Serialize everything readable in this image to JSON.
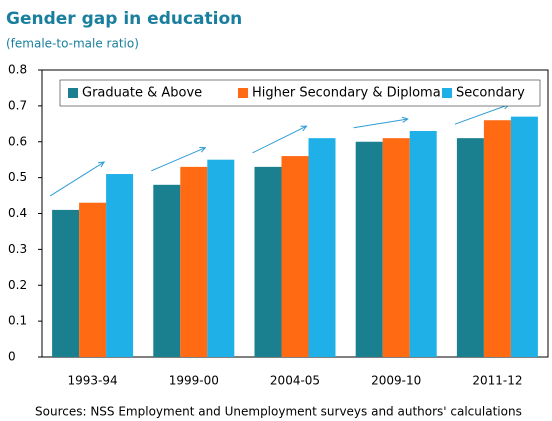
{
  "chart_data": {
    "type": "bar",
    "title": "Gender gap in education",
    "subtitle": "(female-to-male ratio)",
    "source": "Sources: NSS Employment and Unemployment surveys and authors' calculations",
    "categories": [
      "1993-94",
      "1999-00",
      "2004-05",
      "2009-10",
      "2011-12"
    ],
    "series": [
      {
        "name": "Graduate & Above",
        "color": "#1a7f8e",
        "values": [
          0.41,
          0.48,
          0.53,
          0.6,
          0.61
        ]
      },
      {
        "name": "Higher Secondary & Diploma",
        "color": "#ff6a13",
        "values": [
          0.43,
          0.53,
          0.56,
          0.61,
          0.66
        ]
      },
      {
        "name": "Secondary",
        "color": "#1fb0e8",
        "values": [
          0.51,
          0.55,
          0.61,
          0.63,
          0.67
        ]
      }
    ],
    "ylim": [
      0,
      0.8
    ],
    "yticks": [
      0,
      0.1,
      0.2,
      0.3,
      0.4,
      0.5,
      0.6,
      0.7,
      0.8
    ],
    "legend": "top"
  }
}
